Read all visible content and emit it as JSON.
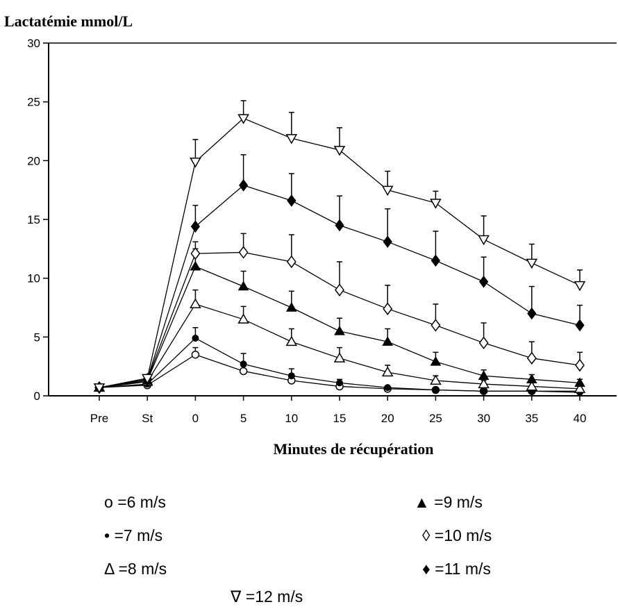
{
  "chart_data": {
    "type": "line",
    "ylabel": "Lactatémie mmol/L",
    "xlabel": "Minutes de récupération",
    "categories": [
      "Pre",
      "St",
      "0",
      "5",
      "10",
      "15",
      "20",
      "25",
      "30",
      "35",
      "40"
    ],
    "ylim": [
      0,
      30
    ],
    "yticks": [
      0,
      5,
      10,
      15,
      20,
      25,
      30
    ],
    "grid": false,
    "legend_placement": "bottom",
    "series": [
      {
        "name": "=6 m/s",
        "symbol": "o",
        "marker": "circle-open",
        "values": [
          0.7,
          0.9,
          3.5,
          2.1,
          1.3,
          0.8,
          0.6,
          0.5,
          0.4,
          0.4,
          0.4
        ],
        "errors": [
          0,
          0,
          0.6,
          0.4,
          0.3,
          0.2,
          0,
          0,
          0,
          0,
          0
        ]
      },
      {
        "name": "=7 m/s",
        "symbol": "•",
        "marker": "circle-filled",
        "values": [
          0.7,
          1.0,
          4.9,
          2.7,
          1.7,
          1.1,
          0.7,
          0.5,
          0.4,
          0.4,
          0.3
        ],
        "errors": [
          0,
          0,
          0.9,
          0.9,
          0.6,
          0.3,
          0,
          0,
          0,
          0,
          0
        ]
      },
      {
        "name": "=8 m/s",
        "symbol": "Δ",
        "marker": "triangle-up-open",
        "values": [
          0.7,
          1.2,
          7.8,
          6.5,
          4.6,
          3.2,
          2.0,
          1.3,
          1.0,
          0.8,
          0.6
        ],
        "errors": [
          0,
          0,
          1.2,
          1.1,
          1.1,
          0.9,
          0.6,
          0.4,
          0.3,
          0,
          0
        ]
      },
      {
        "name": "=9 m/s",
        "symbol": "▲",
        "marker": "triangle-up-filled",
        "values": [
          0.7,
          1.3,
          11.0,
          9.3,
          7.5,
          5.5,
          4.6,
          2.9,
          1.7,
          1.4,
          1.1
        ],
        "errors": [
          0,
          0,
          1.5,
          1.3,
          1.4,
          1.1,
          1.1,
          0.8,
          0.5,
          0.4,
          0.3
        ]
      },
      {
        "name": "=10 m/s",
        "symbol": "◊",
        "marker": "diamond-open",
        "values": [
          0.7,
          1.4,
          12.1,
          12.2,
          11.4,
          9.0,
          7.4,
          6.0,
          4.5,
          3.2,
          2.6
        ],
        "errors": [
          0,
          0,
          1.0,
          1.6,
          2.3,
          2.4,
          2.0,
          1.8,
          1.7,
          1.4,
          1.1
        ]
      },
      {
        "name": "=11 m/s",
        "symbol": "♦",
        "marker": "diamond-filled",
        "values": [
          0.7,
          1.4,
          14.4,
          17.9,
          16.6,
          14.5,
          13.1,
          11.5,
          9.7,
          7.0,
          6.0
        ],
        "errors": [
          0,
          0,
          1.8,
          2.6,
          2.3,
          2.5,
          2.8,
          2.5,
          2.1,
          2.3,
          1.7
        ]
      },
      {
        "name": "=12 m/s",
        "symbol": "∇",
        "marker": "triangle-down-open",
        "values": [
          0.7,
          1.5,
          19.9,
          23.6,
          21.9,
          20.9,
          17.5,
          16.4,
          13.3,
          11.3,
          9.4
        ],
        "errors": [
          0,
          0,
          1.9,
          1.5,
          2.2,
          1.9,
          1.6,
          1.0,
          2.0,
          1.6,
          1.3
        ]
      }
    ]
  }
}
